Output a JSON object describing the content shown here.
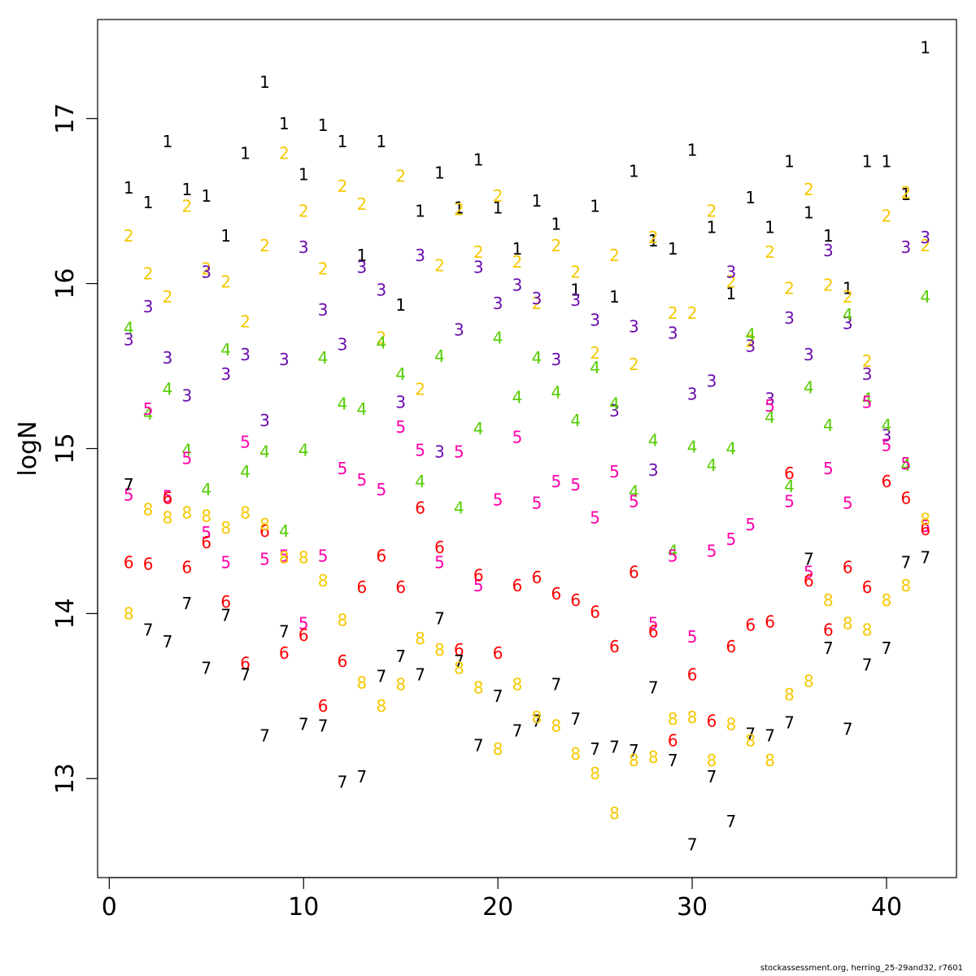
{
  "chart_data": {
    "type": "scatter",
    "title": "",
    "xlabel": "",
    "ylabel": "logN",
    "xlim": [
      -0.6,
      43.6
    ],
    "ylim": [
      12.4,
      17.6
    ],
    "xticks": [
      0,
      10,
      20,
      30,
      40
    ],
    "yticks": [
      13,
      14,
      15,
      16,
      17
    ],
    "grid": false,
    "legend": "none",
    "series": [
      {
        "label": "1",
        "color": "#000000",
        "values": [
          16.58,
          16.49,
          16.86,
          16.57,
          16.53,
          16.29,
          16.79,
          17.22,
          16.97,
          16.66,
          16.96,
          16.86,
          16.17,
          16.86,
          15.87,
          16.44,
          16.67,
          16.46,
          16.75,
          16.46,
          16.21,
          16.5,
          16.36,
          15.96,
          16.47,
          15.92,
          16.68,
          16.26,
          16.21,
          16.81,
          16.34,
          15.94,
          16.52,
          16.34,
          16.74,
          16.43,
          16.29,
          15.97,
          16.74,
          16.74,
          16.54,
          17.43
        ]
      },
      {
        "label": "2",
        "color": "#F5C800",
        "values": [
          16.29,
          16.06,
          15.92,
          16.47,
          16.09,
          16.01,
          15.77,
          16.23,
          16.79,
          16.44,
          16.09,
          16.59,
          16.48,
          15.67,
          16.65,
          15.36,
          16.11,
          16.45,
          16.19,
          16.53,
          16.13,
          15.88,
          16.23,
          16.07,
          15.58,
          16.17,
          15.51,
          16.28,
          15.82,
          15.82,
          16.44,
          16.01,
          15.65,
          16.19,
          15.97,
          16.57,
          15.99,
          15.92,
          15.53,
          16.41,
          16.55,
          16.23
        ]
      },
      {
        "label": "3",
        "color": "#6A0DAD",
        "values": [
          15.66,
          15.86,
          15.55,
          15.32,
          16.07,
          15.45,
          15.57,
          15.17,
          15.54,
          16.22,
          15.84,
          15.63,
          16.1,
          15.96,
          15.28,
          16.17,
          14.98,
          15.72,
          16.1,
          15.88,
          15.99,
          15.91,
          15.54,
          15.9,
          15.78,
          15.23,
          15.74,
          14.87,
          15.7,
          15.33,
          15.41,
          16.07,
          15.62,
          15.3,
          15.79,
          15.57,
          16.2,
          15.76,
          15.45,
          15.08,
          16.22,
          16.28
        ]
      },
      {
        "label": "4",
        "color": "#55CC00",
        "values": [
          15.73,
          15.21,
          15.36,
          14.99,
          14.75,
          15.6,
          14.86,
          14.98,
          14.5,
          14.99,
          15.55,
          15.27,
          15.24,
          15.64,
          15.45,
          14.8,
          15.56,
          14.64,
          15.12,
          15.67,
          15.31,
          15.55,
          15.34,
          15.17,
          15.49,
          15.27,
          14.74,
          15.05,
          14.38,
          15.01,
          14.9,
          15.0,
          15.69,
          15.19,
          14.77,
          15.37,
          15.14,
          15.81,
          15.3,
          15.14,
          14.9,
          15.92
        ]
      },
      {
        "label": "5",
        "color": "#FF00AA",
        "values": [
          14.72,
          15.24,
          14.71,
          14.94,
          14.49,
          14.31,
          15.04,
          14.33,
          14.35,
          13.94,
          14.35,
          14.88,
          14.81,
          14.75,
          15.13,
          14.99,
          14.31,
          14.98,
          14.17,
          14.69,
          15.07,
          14.67,
          14.8,
          14.78,
          14.58,
          14.86,
          14.68,
          13.94,
          14.35,
          13.86,
          14.38,
          14.45,
          14.54,
          15.26,
          14.68,
          14.25,
          14.88,
          14.67,
          15.28,
          15.02,
          14.91,
          14.53
        ]
      },
      {
        "label": "6",
        "color": "#FF0000",
        "values": [
          14.31,
          14.3,
          14.7,
          14.28,
          14.43,
          14.07,
          13.7,
          14.5,
          13.76,
          13.87,
          13.44,
          13.71,
          14.16,
          14.35,
          14.16,
          14.64,
          14.4,
          13.78,
          14.23,
          13.76,
          14.17,
          14.22,
          14.12,
          14.08,
          14.01,
          13.8,
          14.25,
          13.89,
          13.23,
          13.63,
          13.35,
          13.8,
          13.93,
          13.95,
          14.85,
          14.2,
          13.9,
          14.28,
          14.16,
          14.8,
          14.7,
          14.51
        ]
      },
      {
        "label": "7",
        "color": "#000000",
        "values": [
          14.78,
          13.9,
          13.83,
          14.06,
          13.67,
          13.99,
          13.63,
          13.26,
          13.89,
          13.33,
          13.32,
          12.98,
          13.01,
          13.62,
          13.74,
          13.63,
          13.97,
          13.71,
          13.2,
          13.5,
          13.29,
          13.35,
          13.57,
          13.36,
          13.18,
          13.19,
          13.17,
          13.55,
          13.11,
          12.6,
          13.01,
          12.74,
          13.27,
          13.26,
          13.34,
          14.33,
          13.79,
          13.3,
          13.69,
          13.79,
          14.31,
          14.34
        ]
      },
      {
        "label": "8",
        "color": "#F5C800",
        "values": [
          14.0,
          14.63,
          14.58,
          14.61,
          14.59,
          14.52,
          14.61,
          14.54,
          14.34,
          14.34,
          14.2,
          13.96,
          13.58,
          13.44,
          13.57,
          13.85,
          13.78,
          13.67,
          13.55,
          13.18,
          13.57,
          13.37,
          13.32,
          13.15,
          13.03,
          12.79,
          13.11,
          13.13,
          13.36,
          13.37,
          13.11,
          13.33,
          13.23,
          13.11,
          13.51,
          13.59,
          14.08,
          13.94,
          13.9,
          14.08,
          14.17,
          14.57
        ]
      }
    ]
  },
  "footer": {
    "credit": "stockassessment.org, herring_25-29and32, r7601"
  }
}
